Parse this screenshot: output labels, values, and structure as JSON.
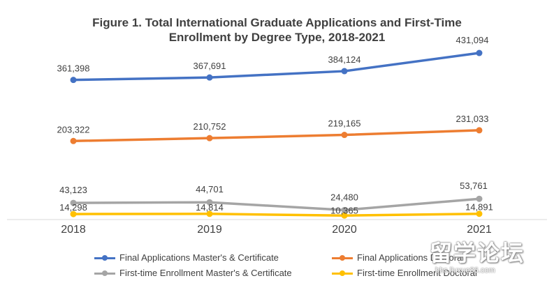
{
  "chart_data": {
    "type": "line",
    "title": "Figure 1. Total International Graduate Applications and First-Time Enrollment by Degree Type, 2018-2021",
    "title_lines": [
      "Figure 1. Total International Graduate Applications and First-Time",
      "Enrollment by Degree Type, 2018-2021"
    ],
    "categories": [
      "2018",
      "2019",
      "2020",
      "2021"
    ],
    "ylim": [
      0,
      460000
    ],
    "xlabel": "",
    "ylabel": "",
    "grid": false,
    "legend_position": "bottom",
    "series": [
      {
        "name": "Final Applications  Master's & Certificate",
        "color": "#4472c4",
        "values": [
          361398,
          367691,
          384124,
          431094
        ],
        "labels": [
          "361,398",
          "367,691",
          "384,124",
          "431,094"
        ]
      },
      {
        "name": "Final Applications  Doctoral",
        "color": "#ed7d31",
        "values": [
          203322,
          210752,
          219165,
          231033
        ],
        "labels": [
          "203,322",
          "210,752",
          "219,165",
          "231,033"
        ]
      },
      {
        "name": "First-time Enrollment  Master's & Certificate",
        "color": "#a5a5a5",
        "values": [
          43123,
          44701,
          24480,
          53761
        ],
        "labels": [
          "43,123",
          "44,701",
          "24,480",
          "53,761"
        ]
      },
      {
        "name": "First-time Enrollment  Doctoral",
        "color": "#ffc000",
        "values": [
          14298,
          14814,
          10365,
          14891
        ],
        "labels": [
          "14,298",
          "14,814",
          "10,365",
          "14,891"
        ]
      }
    ]
  },
  "watermark": {
    "big": "留学论坛",
    "small": "bbs.liuxue86.com"
  }
}
